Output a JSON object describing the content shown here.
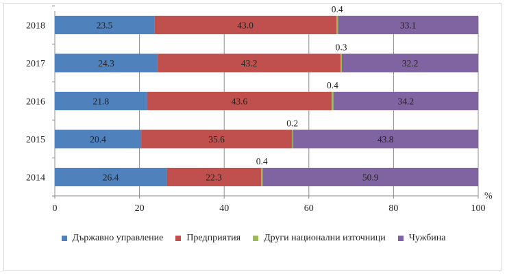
{
  "chart_data": {
    "type": "bar",
    "orientation": "horizontal",
    "stacked": true,
    "title": "",
    "xlabel": "%",
    "ylabel": "",
    "xlim": [
      0,
      100
    ],
    "xticks": [
      "0",
      "20",
      "40",
      "60",
      "80",
      "100"
    ],
    "categories": [
      "2018",
      "2017",
      "2016",
      "2015",
      "2014"
    ],
    "series": [
      {
        "name": "Държавно управление",
        "color": "#4f81bd",
        "values": [
          23.5,
          24.3,
          21.8,
          20.4,
          26.4
        ]
      },
      {
        "name": "Предприятия",
        "color": "#c0504d",
        "values": [
          43.0,
          43.2,
          43.6,
          35.6,
          22.3
        ]
      },
      {
        "name": "Други национални източници",
        "color": "#9bbb59",
        "values": [
          0.4,
          0.3,
          0.4,
          0.2,
          0.4
        ]
      },
      {
        "name": "Чужбина",
        "color": "#8064a2",
        "values": [
          33.1,
          32.2,
          34.2,
          43.8,
          50.9
        ]
      }
    ],
    "grid": true,
    "legend": "bottom"
  }
}
